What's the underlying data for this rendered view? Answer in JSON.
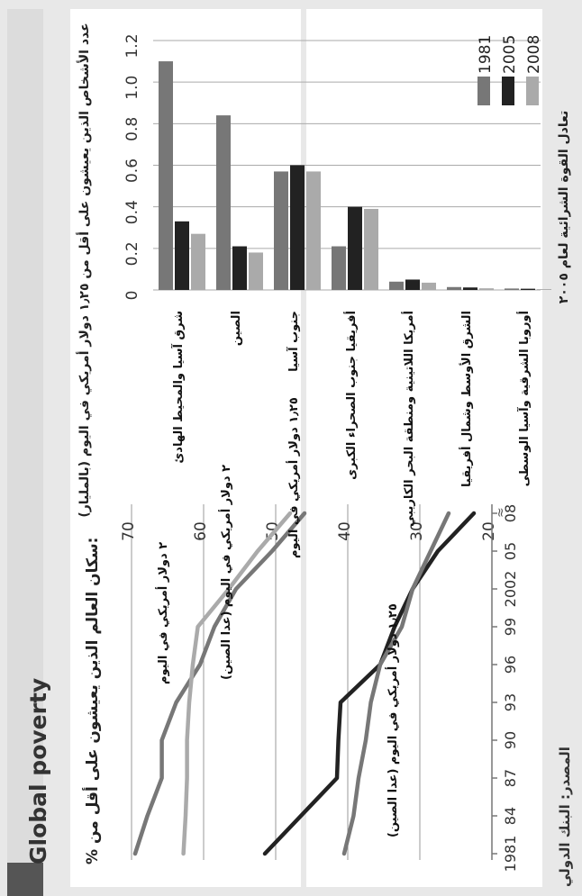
{
  "page": {
    "title": "Global poverty",
    "source": "المصدر: البنك الدولي",
    "ppp_note": "تعادل القوة الشرائية لعام ٢٠٠٥"
  },
  "colors": {
    "light": "#aaaaaa",
    "medium": "#777777",
    "dark": "#222222",
    "grid": "#999999"
  },
  "chart_data": [
    {
      "type": "line",
      "title": "% سكان العالم الذين يعيشون على أقل من:",
      "x": [
        "1981",
        "84",
        "87",
        "90",
        "93",
        "96",
        "99",
        "2002",
        "05",
        "08"
      ],
      "ylim": [
        20,
        70
      ],
      "yticks": [
        20,
        30,
        40,
        50,
        60,
        70
      ],
      "series": [
        {
          "name": "٢ دولار أمريكي في اليوم",
          "color": "#777777",
          "values": [
            69.5,
            67.8,
            65.8,
            65.8,
            63.8,
            60.5,
            58.5,
            55.5,
            50.5,
            46
          ]
        },
        {
          "name": "٢ دولار أمريكي في اليوم (عدا الصين)",
          "color": "#aaaaaa",
          "values": [
            62.8,
            62.5,
            62.3,
            62.3,
            62.0,
            61.5,
            60.8,
            56.5,
            52.5,
            48
          ]
        },
        {
          "name": "١٫٢٥ دولار أمريكي في اليوم",
          "color": "#222222",
          "values": [
            51.5,
            46.5,
            41.5,
            41.3,
            41.0,
            35.5,
            33.5,
            31.0,
            27.5,
            22.5
          ]
        },
        {
          "name": "١٫٢٥ دولار أمريكي في اليوم (عدا الصين)",
          "color": "#777777",
          "values": [
            40.5,
            39.2,
            38.5,
            37.5,
            36.8,
            35.5,
            32.5,
            31.0,
            28.5,
            26.0
          ]
        }
      ]
    },
    {
      "type": "bar",
      "title": "عدد الأشخاص الذين يعيشون على أقل من ١٫٢٥ دولار أمريكي في اليوم (بالمليار)",
      "categories": [
        "شرق آسيا والمحيط الهادئ",
        "الصين",
        "جنوب آسيا",
        "أفريقيا جنوب الصحراء الكبرى",
        "أمريكا اللاتينية ومنطقة البحر الكاريبي",
        "الشرق الأوسط وشمال أفريقيا",
        "أوروبا الشرقية وآسيا الوسطى"
      ],
      "ylim": [
        0,
        1.2
      ],
      "yticks": [
        "0",
        "0.2",
        "0.4",
        "0.6",
        "0.8",
        "1.0",
        "1.2"
      ],
      "series": [
        {
          "name": "1981",
          "color": "#777777",
          "values": [
            1.1,
            0.84,
            0.57,
            0.21,
            0.04,
            0.014,
            0.007
          ]
        },
        {
          "name": "2005",
          "color": "#222222",
          "values": [
            0.33,
            0.21,
            0.6,
            0.4,
            0.05,
            0.012,
            0.006
          ]
        },
        {
          "name": "2008",
          "color": "#aaaaaa",
          "values": [
            0.27,
            0.18,
            0.57,
            0.39,
            0.035,
            0.008,
            0.004
          ]
        }
      ]
    }
  ]
}
